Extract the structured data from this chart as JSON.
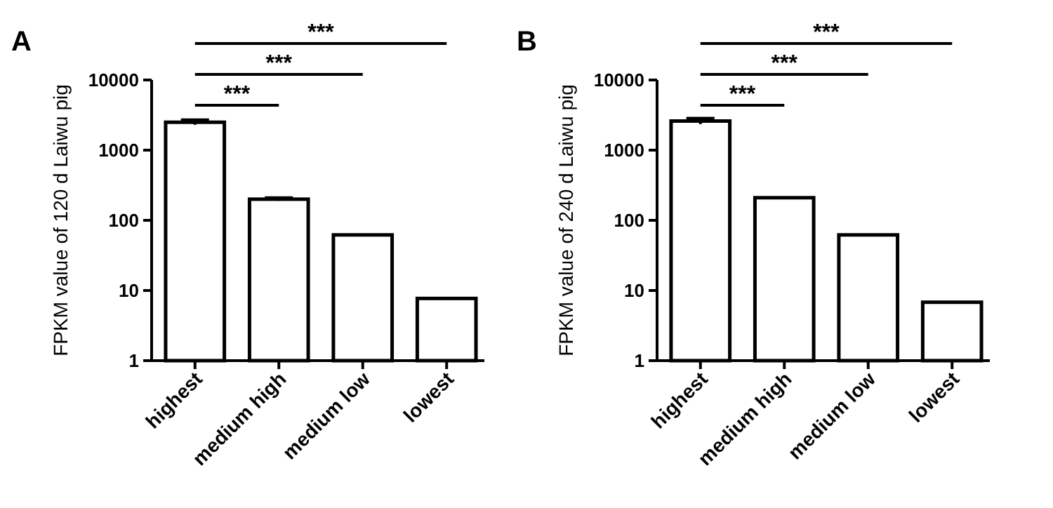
{
  "chart_data": [
    {
      "type": "bar",
      "title": "A",
      "ylabel": "FPKM value of 120 d Laiwu pig",
      "categories": [
        "highest",
        "medium high",
        "medium low",
        "lowest"
      ],
      "values": [
        2500,
        200,
        62,
        7.7
      ],
      "errors": [
        200,
        10,
        null,
        null
      ],
      "color": "#ffffff",
      "log": true,
      "ylim": [
        1,
        10000
      ],
      "yticks": [
        1,
        10,
        100,
        1000,
        10000
      ],
      "grid": false,
      "annotations": [
        "***",
        "***",
        "***"
      ]
    },
    {
      "type": "bar",
      "title": "B",
      "ylabel": "FPKM value of 240 d Laiwu pig",
      "categories": [
        "highest",
        "medium high",
        "medium low",
        "lowest"
      ],
      "values": [
        2600,
        210,
        62,
        6.8
      ],
      "errors": [
        250,
        null,
        null,
        null
      ],
      "color": "#ffffff",
      "log": true,
      "ylim": [
        1,
        10000
      ],
      "yticks": [
        1,
        10,
        100,
        1000,
        10000
      ],
      "grid": false,
      "annotations": [
        "***",
        "***",
        "***"
      ]
    }
  ]
}
